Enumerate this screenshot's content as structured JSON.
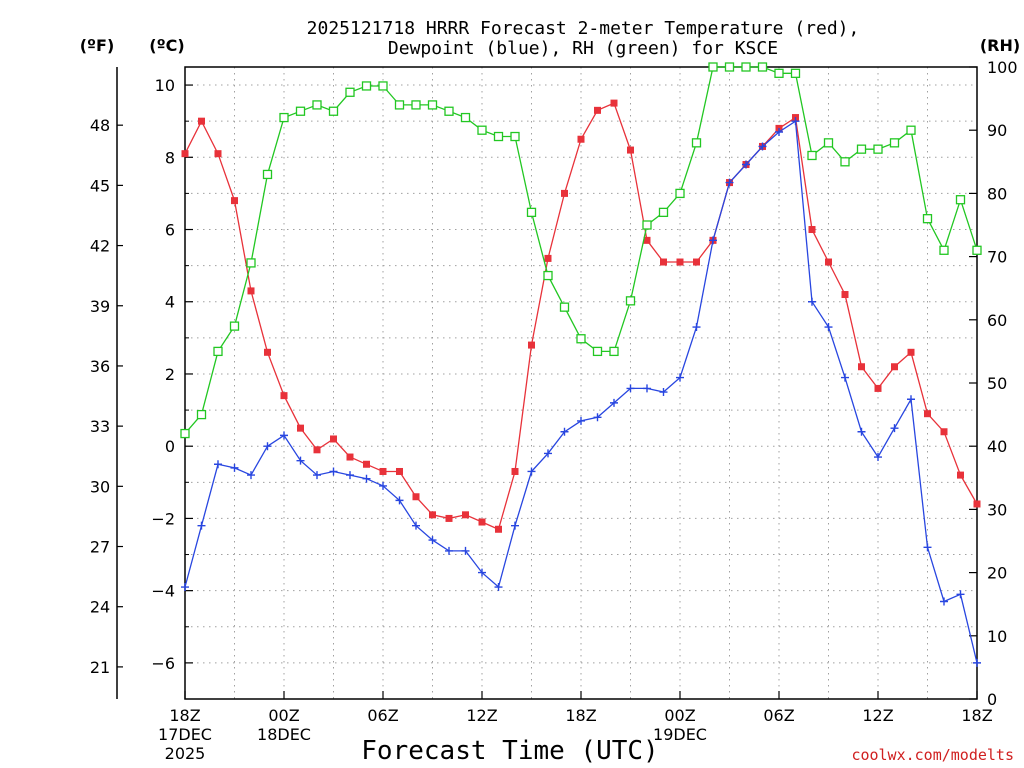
{
  "chart_data": {
    "type": "line",
    "title_line1": "2025121718 HRRR Forecast 2-meter Temperature (red),",
    "title_line2": "Dewpoint (blue), RH (green) for KSCE",
    "xlabel": "Forecast Time (UTC)",
    "credit": "coolwx.com/modelts",
    "units": {
      "fahrenheit": "(ºF)",
      "celsius": "(ºC)",
      "rh": "(RH)"
    },
    "x_hours": [
      0,
      1,
      2,
      3,
      4,
      5,
      6,
      7,
      8,
      9,
      10,
      11,
      12,
      13,
      14,
      15,
      16,
      17,
      18,
      19,
      20,
      21,
      22,
      23,
      24,
      25,
      26,
      27,
      28,
      29,
      30,
      31,
      32,
      33,
      34,
      35,
      36,
      37,
      38,
      39,
      40,
      41,
      42,
      43,
      44,
      45,
      46,
      47,
      48
    ],
    "xlim": [
      0,
      48
    ],
    "ylim_c": [
      -7,
      10.5
    ],
    "ylim_rh": [
      0,
      100
    ],
    "x_ticks": [
      {
        "h": 0,
        "lines": [
          "18Z",
          "17DEC",
          "2025"
        ]
      },
      {
        "h": 6,
        "lines": [
          "00Z",
          "18DEC"
        ]
      },
      {
        "h": 12,
        "lines": [
          "06Z"
        ]
      },
      {
        "h": 18,
        "lines": [
          "12Z"
        ]
      },
      {
        "h": 24,
        "lines": [
          "18Z"
        ]
      },
      {
        "h": 30,
        "lines": [
          "00Z",
          "19DEC"
        ]
      },
      {
        "h": 36,
        "lines": [
          "06Z"
        ]
      },
      {
        "h": 42,
        "lines": [
          "12Z"
        ]
      },
      {
        "h": 48,
        "lines": [
          "18Z"
        ]
      }
    ],
    "c_ticks": [
      {
        "v": 10,
        "label": "10"
      },
      {
        "v": 8,
        "label": "8"
      },
      {
        "v": 6,
        "label": "6"
      },
      {
        "v": 4,
        "label": "4"
      },
      {
        "v": 2,
        "label": "2"
      },
      {
        "v": 0,
        "label": "0"
      },
      {
        "v": -2,
        "label": "−2"
      },
      {
        "v": -4,
        "label": "−4"
      },
      {
        "v": -6,
        "label": "−6"
      }
    ],
    "f_ticks": [
      {
        "v": 48,
        "label": "48"
      },
      {
        "v": 45,
        "label": "45"
      },
      {
        "v": 42,
        "label": "42"
      },
      {
        "v": 39,
        "label": "39"
      },
      {
        "v": 36,
        "label": "36"
      },
      {
        "v": 33,
        "label": "33"
      },
      {
        "v": 30,
        "label": "30"
      },
      {
        "v": 27,
        "label": "27"
      },
      {
        "v": 24,
        "label": "24"
      },
      {
        "v": 21,
        "label": "21"
      }
    ],
    "rh_ticks": [
      {
        "v": 100,
        "label": "100"
      },
      {
        "v": 90,
        "label": "90"
      },
      {
        "v": 80,
        "label": "80"
      },
      {
        "v": 70,
        "label": "70"
      },
      {
        "v": 60,
        "label": "60"
      },
      {
        "v": 50,
        "label": "50"
      },
      {
        "v": 40,
        "label": "40"
      },
      {
        "v": 30,
        "label": "30"
      },
      {
        "v": 20,
        "label": "20"
      },
      {
        "v": 10,
        "label": "10"
      },
      {
        "v": 0,
        "label": "0"
      }
    ],
    "series": [
      {
        "name": "2-meter Temperature",
        "axis": "celsius",
        "color": "#e8323a",
        "marker": "filled-square",
        "values": [
          8.1,
          9.0,
          8.1,
          6.8,
          4.3,
          2.6,
          1.4,
          0.5,
          -0.1,
          0.2,
          -0.3,
          -0.5,
          -0.7,
          -0.7,
          -1.4,
          -1.9,
          -2.0,
          -1.9,
          -2.1,
          -2.3,
          -0.7,
          2.8,
          5.2,
          7.0,
          8.5,
          9.3,
          9.5,
          8.2,
          5.7,
          5.1,
          5.1,
          5.1,
          5.7,
          7.3,
          7.8,
          8.3,
          8.8,
          9.1,
          6.0,
          5.1,
          4.2,
          2.2,
          1.6,
          2.2,
          2.6,
          0.9,
          0.4,
          -0.8,
          -1.6
        ]
      },
      {
        "name": "Dewpoint",
        "axis": "celsius",
        "color": "#2846e0",
        "marker": "plus",
        "values": [
          -3.9,
          -2.2,
          -0.5,
          -0.6,
          -0.8,
          0.0,
          0.3,
          -0.4,
          -0.8,
          -0.7,
          -0.8,
          -0.9,
          -1.1,
          -1.5,
          -2.2,
          -2.6,
          -2.9,
          -2.9,
          -3.5,
          -3.9,
          -2.2,
          -0.7,
          -0.2,
          0.4,
          0.7,
          0.8,
          1.2,
          1.6,
          1.6,
          1.5,
          1.9,
          3.3,
          5.7,
          7.3,
          7.8,
          8.3,
          8.7,
          9.0,
          4.0,
          3.3,
          1.9,
          0.4,
          -0.3,
          0.5,
          1.3,
          -2.8,
          -4.3,
          -4.1,
          -6.0
        ]
      },
      {
        "name": "RH",
        "axis": "rh",
        "color": "#22c722",
        "marker": "open-square",
        "values": [
          42,
          45,
          55,
          59,
          69,
          83,
          92,
          93,
          94,
          93,
          96,
          97,
          97,
          94,
          94,
          94,
          93,
          92,
          90,
          89,
          89,
          77,
          67,
          62,
          57,
          55,
          55,
          63,
          75,
          77,
          80,
          88,
          100,
          100,
          100,
          100,
          99,
          99,
          86,
          88,
          85,
          87,
          87,
          88,
          90,
          76,
          71,
          79,
          71
        ]
      }
    ]
  }
}
